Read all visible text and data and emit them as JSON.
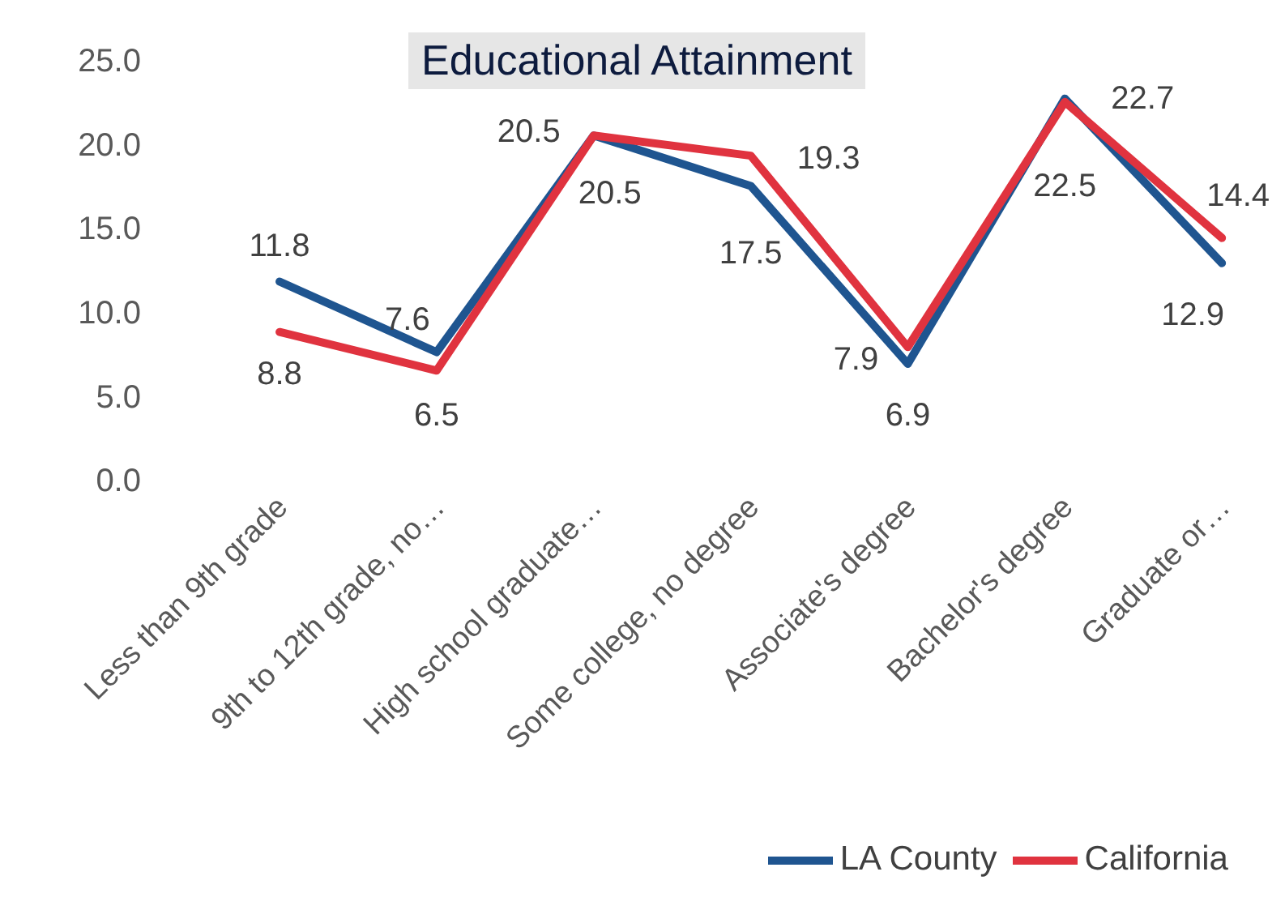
{
  "chart_data": {
    "type": "line",
    "title": "Educational Attainment",
    "categories": [
      "Less than 9th grade",
      "9th to 12th grade, no…",
      "High school graduate…",
      "Some college, no degree",
      "Associate's degree",
      "Bachelor's degree",
      "Graduate or…"
    ],
    "series": [
      {
        "name": "LA County",
        "color": "#1f5590",
        "values": [
          11.8,
          7.6,
          20.5,
          17.5,
          6.9,
          22.7,
          12.9
        ]
      },
      {
        "name": "California",
        "color": "#e0333f",
        "values": [
          8.8,
          6.5,
          20.5,
          19.3,
          7.9,
          22.5,
          14.4
        ]
      }
    ],
    "ylim": [
      0,
      25
    ],
    "yticks": [
      {
        "value": 0,
        "label": "0.0"
      },
      {
        "value": 5,
        "label": "5.0"
      },
      {
        "value": 10,
        "label": "10.0"
      },
      {
        "value": 15,
        "label": "15.0"
      },
      {
        "value": 20,
        "label": "20.0"
      },
      {
        "value": 25,
        "label": "25.0"
      }
    ],
    "data_labels": true,
    "legend": "bottom right",
    "marker": "none",
    "line_style": "solid",
    "grid": false
  }
}
